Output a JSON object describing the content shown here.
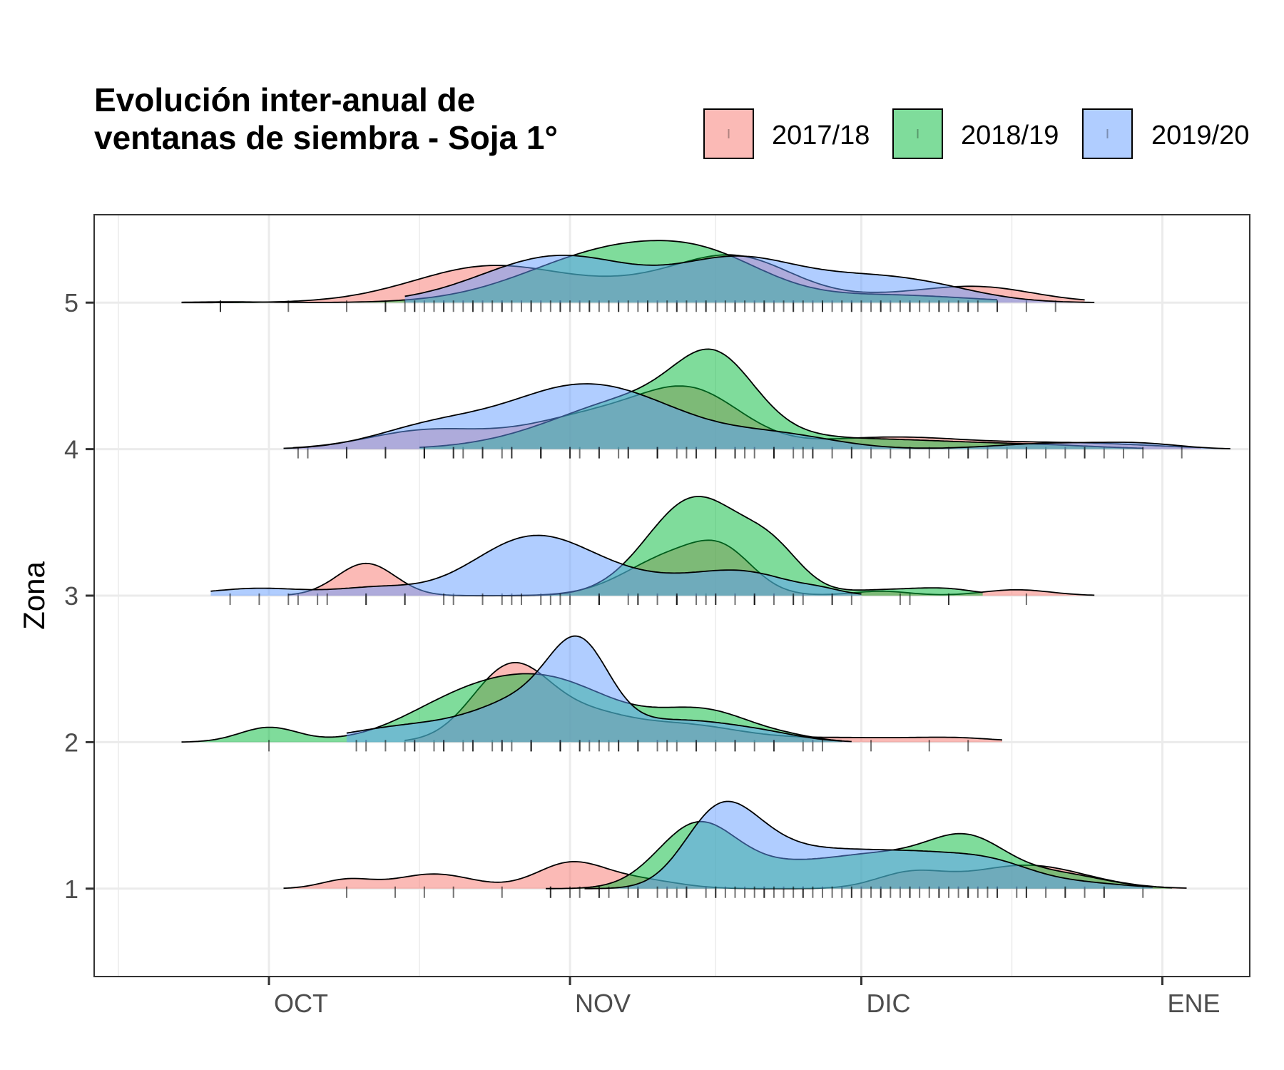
{
  "chart_data": {
    "type": "ridgeline-density",
    "title_lines": [
      "Evolución inter-anual de",
      "ventanas de siembra - Soja 1°"
    ],
    "ylabel": "Zona",
    "xlabel": "",
    "y_categories": [
      "1",
      "2",
      "3",
      "4",
      "5"
    ],
    "x_tick_labels": [
      "OCT",
      "NOV",
      "DIC",
      "ENE"
    ],
    "x_tick_days": [
      0,
      31,
      61,
      92
    ],
    "x_range_days": [
      -18,
      101
    ],
    "y_range": [
      0.4,
      5.6
    ],
    "grid": true,
    "legend_position": "top-right",
    "colors": {
      "2017/18": "#F8766D",
      "2018/19": "#00BA38",
      "2019/20": "#619CFF"
    },
    "series": [
      {
        "name": "2017/18",
        "ridges": [
          {
            "zone": 1,
            "start": 1.5,
            "end": 94.5,
            "peaks": [
              [
                8,
                2.6,
                0.06
              ],
              [
                17,
                4,
                0.1
              ],
              [
                31,
                3.5,
                0.17
              ],
              [
                38,
                4,
                0.06
              ],
              [
                66,
                3.5,
                0.1
              ],
              [
                78,
                6,
                0.16
              ]
            ],
            "rug": [
              8,
              13,
              16,
              19,
              24,
              29,
              31,
              34,
              38,
              42,
              46,
              51,
              55,
              60,
              63,
              66,
              69,
              72,
              75,
              78,
              82,
              86,
              90
            ]
          },
          {
            "zone": 2,
            "start": 14,
            "end": 75.5,
            "peaks": [
              [
                25,
                4,
                0.52
              ],
              [
                33,
                4,
                0.14
              ],
              [
                42,
                6,
                0.12
              ],
              [
                60,
                8,
                0.03
              ],
              [
                71,
                4,
                0.02
              ]
            ],
            "rug": [
              14,
              17,
              20,
              23,
              25,
              27,
              30,
              32,
              35,
              38,
              42,
              46,
              50,
              55,
              62,
              68,
              72
            ]
          },
          {
            "zone": 3,
            "start": 2,
            "end": 85,
            "peaks": [
              [
                10,
                3,
                0.22
              ],
              [
                42,
                5,
                0.28
              ],
              [
                47,
                3,
                0.18
              ],
              [
                63,
                3,
                0.03
              ],
              [
                77,
                3.5,
                0.04
              ]
            ],
            "rug": [
              3,
              5,
              10,
              14,
              19,
              24,
              29,
              34,
              38,
              42,
              45,
              50,
              54,
              60,
              66,
              70,
              78
            ]
          },
          {
            "zone": 4,
            "start": 2.5,
            "end": 96,
            "peaks": [
              [
                16,
                6,
                0.12
              ],
              [
                35,
                8,
                0.25
              ],
              [
                44,
                5,
                0.28
              ],
              [
                64,
                8,
                0.08
              ],
              [
                83,
                8,
                0.04
              ]
            ],
            "rug": [
              4,
              8,
              12,
              16,
              20,
              24,
              28,
              32,
              36,
              40,
              44,
              48,
              52,
              56,
              60,
              64,
              68,
              72,
              76,
              80,
              84,
              88
            ]
          },
          {
            "zone": 5,
            "start": -9,
            "end": 84,
            "peaks": [
              [
                23,
                8,
                0.25
              ],
              [
                38,
                6,
                0.08
              ],
              [
                48,
                6,
                0.3
              ],
              [
                69,
                8,
                0.07
              ],
              [
                74,
                5,
                0.05
              ]
            ],
            "rug": [
              -5,
              2,
              8,
              12,
              15,
              18,
              21,
              24,
              27,
              30,
              33,
              36,
              39,
              42,
              45,
              48,
              51,
              54,
              57,
              60,
              63,
              66,
              69,
              72,
              75,
              78,
              81
            ]
          }
        ]
      },
      {
        "name": "2018/19",
        "ridges": [
          {
            "zone": 1,
            "start": 28.5,
            "end": 93,
            "peaks": [
              [
                44,
                4,
                0.42
              ],
              [
                52,
                5,
                0.12
              ],
              [
                63,
                6,
                0.22
              ],
              [
                72,
                4,
                0.28
              ],
              [
                81,
                5,
                0.1
              ]
            ],
            "rug": [
              29,
              32,
              35,
              38,
              41,
              43,
              45,
              47,
              49,
              51,
              53,
              55,
              57,
              59,
              61,
              63,
              65,
              67,
              69,
              71,
              73,
              75,
              77,
              80,
              84
            ]
          },
          {
            "zone": 2,
            "start": -9,
            "end": 59,
            "peaks": [
              [
                0,
                3,
                0.1
              ],
              [
                19,
                6,
                0.2
              ],
              [
                29,
                7,
                0.4
              ],
              [
                45,
                5,
                0.2
              ],
              [
                54,
                3,
                0.02
              ]
            ],
            "rug": [
              0,
              10,
              15,
              18,
              21,
              24,
              27,
              30,
              33,
              36,
              40,
              44,
              48,
              52,
              56
            ]
          },
          {
            "zone": 3,
            "start": 24,
            "end": 73.5,
            "peaks": [
              [
                44,
                5,
                0.67
              ],
              [
                52,
                3,
                0.22
              ],
              [
                64,
                5,
                0.04
              ],
              [
                70,
                3,
                0.03
              ]
            ],
            "rug": [
              25,
              28,
              31,
              34,
              37,
              40,
              42,
              44,
              46,
              48,
              50,
              52,
              55,
              58,
              65,
              70
            ]
          },
          {
            "zone": 4,
            "start": 15.5,
            "end": 90,
            "peaks": [
              [
                39,
                9,
                0.36
              ],
              [
                46,
                4,
                0.4
              ],
              [
                64,
                9,
                0.06
              ],
              [
                80,
                6,
                0.02
              ]
            ],
            "rug": [
              16,
              19,
              22,
              25,
              28,
              31,
              34,
              37,
              40,
              42,
              44,
              46,
              48,
              50,
              52,
              54,
              56,
              58,
              62,
              66,
              70,
              74,
              78,
              82,
              86
            ]
          },
          {
            "zone": 5,
            "start": -9,
            "end": 75,
            "peaks": [
              [
                -4,
                4,
                0.005
              ],
              [
                36,
                9,
                0.36
              ],
              [
                46,
                6,
                0.16
              ],
              [
                64,
                8,
                0.05
              ]
            ],
            "rug": [
              -5,
              12,
              14,
              16,
              18,
              20,
              22,
              24,
              26,
              28,
              30,
              32,
              34,
              36,
              38,
              40,
              42,
              44,
              46,
              48,
              50,
              52,
              54,
              56,
              58,
              60,
              62,
              64,
              66,
              68,
              70,
              72
            ]
          }
        ]
      },
      {
        "name": "2019/20",
        "ridges": [
          {
            "zone": 1,
            "start": 32.5,
            "end": 91,
            "peaks": [
              [
                46,
                3.5,
                0.42
              ],
              [
                50,
                4,
                0.22
              ],
              [
                57,
                5,
                0.18
              ],
              [
                67,
                6,
                0.22
              ],
              [
                75,
                4,
                0.1
              ],
              [
                83,
                5,
                0.04
              ]
            ],
            "rug": [
              34,
              37,
              40,
              43,
              46,
              48,
              50,
              52,
              54,
              56,
              58,
              60,
              62,
              64,
              66,
              68,
              70,
              72,
              74,
              78,
              82,
              86
            ]
          },
          {
            "zone": 2,
            "start": 8,
            "end": 60,
            "peaks": [
              [
                14,
                6,
                0.1
              ],
              [
                28,
                6,
                0.32
              ],
              [
                32,
                3,
                0.45
              ],
              [
                43,
                5,
                0.13
              ],
              [
                51,
                4,
                0.05
              ]
            ],
            "rug": [
              9,
              12,
              15,
              18,
              21,
              24,
              27,
              30,
              32,
              34,
              36,
              38,
              41,
              44,
              48,
              52,
              57
            ]
          },
          {
            "zone": 3,
            "start": -6,
            "end": 61,
            "peaks": [
              [
                -1,
                5,
                0.05
              ],
              [
                11,
                4,
                0.05
              ],
              [
                27,
                6,
                0.38
              ],
              [
                38,
                7,
                0.1
              ],
              [
                49,
                5,
                0.14
              ],
              [
                57,
                2,
                0.02
              ]
            ],
            "rug": [
              -4,
              -1,
              2,
              6,
              10,
              14,
              18,
              22,
              26,
              30,
              34,
              38,
              42,
              46,
              50,
              54,
              58
            ]
          },
          {
            "zone": 4,
            "start": 1.5,
            "end": 99,
            "peaks": [
              [
                17,
                6,
                0.15
              ],
              [
                31,
                7,
                0.38
              ],
              [
                40,
                6,
                0.15
              ],
              [
                52,
                6,
                0.1
              ],
              [
                81,
                6,
                0.04
              ],
              [
                90,
                4,
                0.03
              ]
            ],
            "rug": [
              3,
              8,
              12,
              16,
              19,
              22,
              25,
              28,
              31,
              34,
              37,
              40,
              43,
              46,
              49,
              52,
              55,
              60,
              66,
              72,
              78,
              84,
              90,
              94
            ]
          },
          {
            "zone": 5,
            "start": 14,
            "end": 85,
            "peaks": [
              [
                30,
                8,
                0.32
              ],
              [
                48,
                6,
                0.26
              ],
              [
                60,
                7,
                0.14
              ],
              [
                68,
                6,
                0.07
              ]
            ],
            "rug": [
              15,
              17,
              19,
              21,
              23,
              25,
              27,
              29,
              31,
              33,
              35,
              37,
              39,
              41,
              43,
              45,
              47,
              49,
              51,
              53,
              55,
              57,
              59,
              61,
              63,
              65,
              67,
              69,
              71,
              73,
              75
            ]
          }
        ]
      }
    ]
  }
}
